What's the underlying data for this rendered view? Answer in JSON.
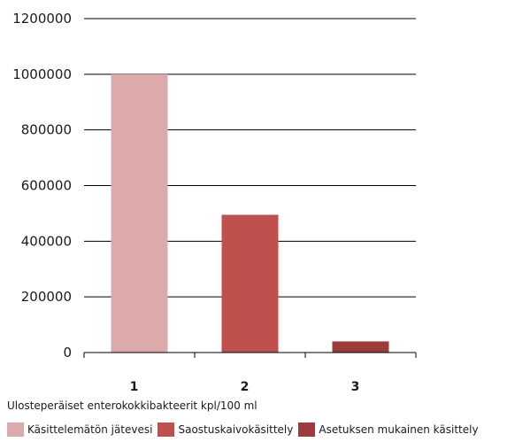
{
  "chart_data": {
    "type": "bar",
    "categories": [
      "1",
      "2",
      "3"
    ],
    "values": [
      1000000,
      495000,
      40000
    ],
    "colors": [
      "#dcaaaa",
      "#c0504d",
      "#9b3b3b"
    ],
    "ylim": [
      0,
      1200000
    ],
    "yticks": [
      "1200000",
      "1000000",
      "800000",
      "600000",
      "400000",
      "200000",
      "0"
    ],
    "ytick_values": [
      1200000,
      1000000,
      800000,
      600000,
      400000,
      200000,
      0
    ],
    "grid": true,
    "xlabel": "Ulosteperäiset enterokokkibakteerit kpl/100 ml",
    "legend": {
      "placement": "bottom",
      "entries": [
        {
          "label": "Käsittelemätön jätevesi",
          "color": "#dcaaaa"
        },
        {
          "label": "Saostuskaivokäsittely",
          "color": "#c0504d"
        },
        {
          "label": "Asetuksen mukainen käsittely",
          "color": "#9b3b3b"
        }
      ]
    }
  }
}
